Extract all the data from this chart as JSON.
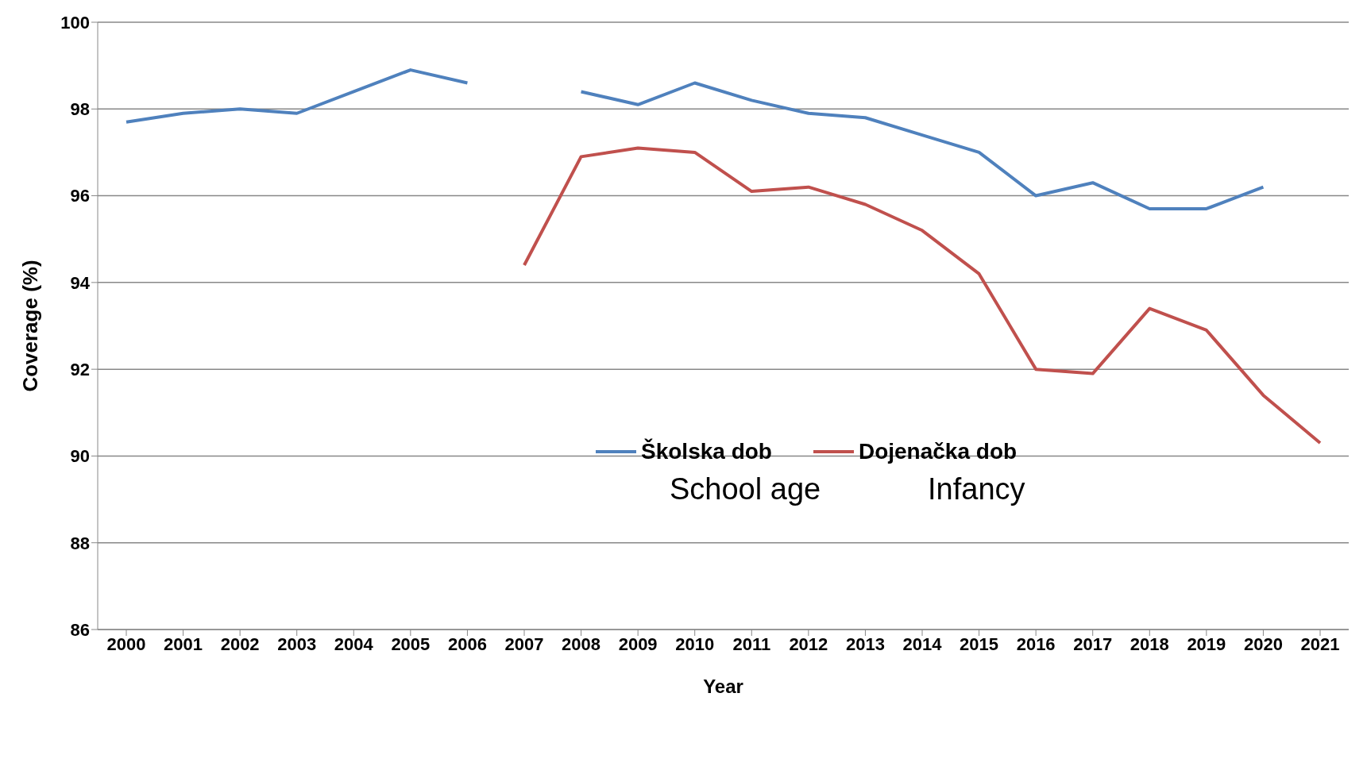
{
  "chart_data": {
    "type": "line",
    "xlabel": "Year",
    "ylabel": "Coverage (%)",
    "categories": [
      "2000",
      "2001",
      "2002",
      "2003",
      "2004",
      "2005",
      "2006",
      "2007",
      "2008",
      "2009",
      "2010",
      "2011",
      "2012",
      "2013",
      "2014",
      "2015",
      "2016",
      "2017",
      "2018",
      "2019",
      "2020",
      "2021"
    ],
    "series": [
      {
        "name": "Školska dob",
        "color": "#4f81bd",
        "values": [
          97.7,
          97.9,
          98.0,
          97.9,
          98.4,
          98.9,
          98.6,
          null,
          98.4,
          98.1,
          98.6,
          98.2,
          97.9,
          97.8,
          97.4,
          97.0,
          96.0,
          96.3,
          95.7,
          95.7,
          96.2,
          null
        ]
      },
      {
        "name": "Dojenačka dob",
        "color": "#c0504d",
        "values": [
          null,
          null,
          null,
          null,
          null,
          null,
          null,
          94.4,
          96.9,
          97.1,
          97.0,
          96.1,
          96.2,
          95.8,
          95.2,
          94.2,
          92.0,
          91.9,
          93.4,
          92.9,
          91.4,
          90.3
        ]
      }
    ],
    "annotations": [
      "School age",
      "Infancy"
    ],
    "ylim": [
      86,
      100
    ],
    "yticks": [
      86,
      88,
      90,
      92,
      94,
      96,
      98,
      100
    ],
    "grid": "y",
    "legend": "center",
    "marker": "none",
    "line_style": "solid"
  }
}
